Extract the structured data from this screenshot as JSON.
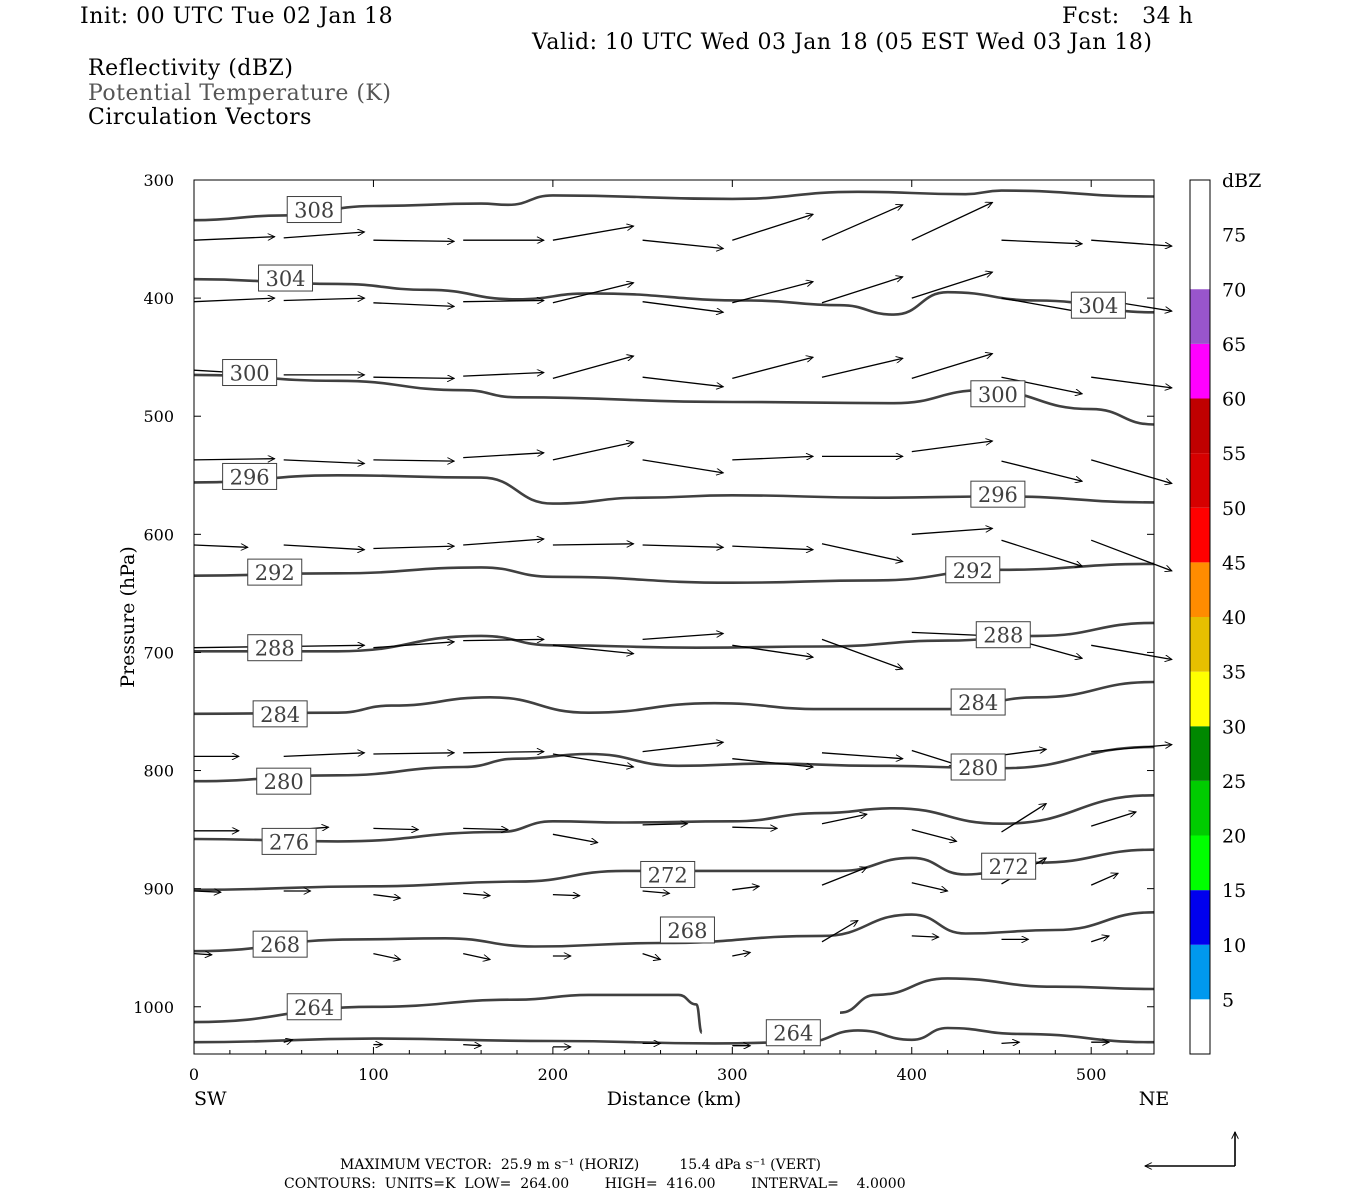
{
  "header": {
    "init": "Init: 00 UTC Tue 02 Jan 18",
    "fcst": "Fcst:   34 h",
    "valid": "Valid: 10 UTC Wed 03 Jan 18 (05 EST Wed 03 Jan 18)",
    "field1": "Reflectivity (dBZ)",
    "field2": "Potential Temperature (K)",
    "field3": "Circulation Vectors"
  },
  "footer": {
    "line1": "MAXIMUM VECTOR:  25.9 m s⁻¹ (HORIZ)         15.4 dPa s⁻¹ (VERT)",
    "line2": "CONTOURS:  UNITS=K  LOW=  264.00        HIGH=  416.00        INTERVAL=    4.0000"
  },
  "colorbar": {
    "title": "dBZ",
    "labels": [
      "5",
      "10",
      "15",
      "20",
      "25",
      "30",
      "35",
      "40",
      "45",
      "50",
      "55",
      "60",
      "65",
      "70",
      "75"
    ],
    "colors": [
      "#00e5e5",
      "#0099ee",
      "#0000ee",
      "#00ff00",
      "#00cc00",
      "#008800",
      "#ffff00",
      "#e6bf00",
      "#ff8c00",
      "#ff0000",
      "#d60000",
      "#c00000",
      "#ff00ff",
      "#9955cc"
    ]
  },
  "chart_data": {
    "type": "cross-section contour with vectors",
    "xlabel": "Distance (km)",
    "ylabel": "Pressure (hPa)",
    "x_ticks": [
      "0",
      "100",
      "200",
      "300",
      "400",
      "500"
    ],
    "y_ticks": [
      "300",
      "400",
      "500",
      "600",
      "700",
      "800",
      "900",
      "1000"
    ],
    "xlim": [
      0,
      535
    ],
    "ylim": [
      1040,
      300
    ],
    "x_end_labels": {
      "left": "SW",
      "right": "NE"
    },
    "contour_interval_K": 4,
    "isentropes": [
      {
        "theta": 308,
        "points": [
          [
            0,
            334
          ],
          [
            50,
            330
          ],
          [
            100,
            322
          ],
          [
            160,
            320
          ],
          [
            175,
            321
          ],
          [
            200,
            313
          ],
          [
            300,
            316
          ],
          [
            370,
            310
          ],
          [
            430,
            312
          ],
          [
            450,
            309
          ],
          [
            535,
            314
          ]
        ]
      },
      {
        "theta": 304,
        "points": [
          [
            0,
            384
          ],
          [
            80,
            388
          ],
          [
            130,
            393
          ],
          [
            180,
            401
          ],
          [
            220,
            396
          ],
          [
            310,
            402
          ],
          [
            360,
            406
          ],
          [
            390,
            414
          ],
          [
            420,
            395
          ],
          [
            470,
            402
          ],
          [
            535,
            412
          ]
        ]
      },
      {
        "theta": 300,
        "points": [
          [
            0,
            465
          ],
          [
            80,
            470
          ],
          [
            150,
            478
          ],
          [
            180,
            484
          ],
          [
            300,
            488
          ],
          [
            390,
            489
          ],
          [
            440,
            478
          ],
          [
            500,
            494
          ],
          [
            535,
            507
          ]
        ]
      },
      {
        "theta": 296,
        "points": [
          [
            0,
            556
          ],
          [
            80,
            550
          ],
          [
            160,
            552
          ],
          [
            200,
            574
          ],
          [
            250,
            569
          ],
          [
            300,
            567
          ],
          [
            380,
            569
          ],
          [
            450,
            568
          ],
          [
            535,
            573
          ]
        ]
      },
      {
        "theta": 292,
        "points": [
          [
            0,
            635
          ],
          [
            80,
            633
          ],
          [
            160,
            628
          ],
          [
            200,
            636
          ],
          [
            300,
            641
          ],
          [
            380,
            639
          ],
          [
            450,
            630
          ],
          [
            535,
            625
          ]
        ]
      },
      {
        "theta": 288,
        "points": [
          [
            0,
            699
          ],
          [
            80,
            699
          ],
          [
            160,
            686
          ],
          [
            200,
            694
          ],
          [
            280,
            696
          ],
          [
            350,
            695
          ],
          [
            420,
            690
          ],
          [
            470,
            686
          ],
          [
            535,
            675
          ]
        ]
      },
      {
        "theta": 284,
        "points": [
          [
            0,
            752
          ],
          [
            80,
            751
          ],
          [
            110,
            745
          ],
          [
            165,
            738
          ],
          [
            220,
            751
          ],
          [
            290,
            743
          ],
          [
            350,
            748
          ],
          [
            420,
            748
          ],
          [
            470,
            738
          ],
          [
            535,
            725
          ]
        ]
      },
      {
        "theta": 280,
        "points": [
          [
            0,
            809
          ],
          [
            80,
            804
          ],
          [
            150,
            797
          ],
          [
            180,
            790
          ],
          [
            220,
            786
          ],
          [
            270,
            796
          ],
          [
            320,
            794
          ],
          [
            380,
            796
          ],
          [
            450,
            798
          ],
          [
            535,
            780
          ]
        ]
      },
      {
        "theta": 276,
        "points": [
          [
            0,
            858
          ],
          [
            80,
            860
          ],
          [
            170,
            852
          ],
          [
            200,
            843
          ],
          [
            240,
            844
          ],
          [
            300,
            843
          ],
          [
            350,
            836
          ],
          [
            390,
            832
          ],
          [
            450,
            845
          ],
          [
            535,
            821
          ]
        ]
      },
      {
        "theta": 272,
        "points": [
          [
            0,
            901
          ],
          [
            100,
            898
          ],
          [
            180,
            894
          ],
          [
            240,
            885
          ],
          [
            320,
            885
          ],
          [
            360,
            885
          ],
          [
            400,
            874
          ],
          [
            430,
            888
          ],
          [
            470,
            878
          ],
          [
            535,
            867
          ]
        ]
      },
      {
        "theta": 268,
        "points": [
          [
            0,
            953
          ],
          [
            90,
            943
          ],
          [
            140,
            942
          ],
          [
            190,
            949
          ],
          [
            260,
            946
          ],
          [
            350,
            940
          ],
          [
            400,
            922
          ],
          [
            430,
            938
          ],
          [
            480,
            935
          ],
          [
            535,
            920
          ]
        ]
      },
      {
        "theta": 264,
        "points": [
          [
            0,
            1013
          ],
          [
            100,
            1000
          ],
          [
            180,
            994
          ],
          [
            220,
            990
          ],
          [
            270,
            990
          ],
          [
            280,
            998
          ],
          [
            283,
            1022
          ]
        ]
      },
      {
        "theta": 264,
        "points": [
          [
            360,
            1005
          ],
          [
            380,
            990
          ],
          [
            420,
            976
          ],
          [
            480,
            983
          ],
          [
            535,
            985
          ]
        ]
      },
      {
        "theta": 264,
        "points": [
          [
            0,
            1030
          ],
          [
            100,
            1027
          ],
          [
            200,
            1029
          ],
          [
            290,
            1031
          ],
          [
            340,
            1030
          ],
          [
            370,
            1020
          ],
          [
            400,
            1028
          ],
          [
            420,
            1018
          ],
          [
            460,
            1023
          ],
          [
            535,
            1030
          ]
        ]
      }
    ],
    "contour_labels": [
      {
        "text": "308",
        "x": 67,
        "p": 325
      },
      {
        "text": "304",
        "x": 51,
        "p": 383
      },
      {
        "text": "304",
        "x": 504,
        "p": 406
      },
      {
        "text": "300",
        "x": 31,
        "p": 463
      },
      {
        "text": "300",
        "x": 448,
        "p": 481
      },
      {
        "text": "296",
        "x": 31,
        "p": 551
      },
      {
        "text": "296",
        "x": 448,
        "p": 566
      },
      {
        "text": "292",
        "x": 45,
        "p": 632
      },
      {
        "text": "292",
        "x": 434,
        "p": 630
      },
      {
        "text": "288",
        "x": 45,
        "p": 696
      },
      {
        "text": "288",
        "x": 451,
        "p": 685
      },
      {
        "text": "284",
        "x": 48,
        "p": 752
      },
      {
        "text": "284",
        "x": 437,
        "p": 742
      },
      {
        "text": "280",
        "x": 50,
        "p": 809
      },
      {
        "text": "280",
        "x": 437,
        "p": 797
      },
      {
        "text": "276",
        "x": 53,
        "p": 860
      },
      {
        "text": "272",
        "x": 264,
        "p": 888
      },
      {
        "text": "272",
        "x": 454,
        "p": 881
      },
      {
        "text": "268",
        "x": 48,
        "p": 947
      },
      {
        "text": "268",
        "x": 275,
        "p": 935
      },
      {
        "text": "264",
        "x": 67,
        "p": 1000
      },
      {
        "text": "264",
        "x": 334,
        "p": 1022
      }
    ],
    "vectors": [
      [
        0,
        351,
        45,
        348
      ],
      [
        50,
        349,
        95,
        344
      ],
      [
        100,
        351,
        145,
        352
      ],
      [
        150,
        351,
        195,
        351
      ],
      [
        200,
        351,
        245,
        339
      ],
      [
        250,
        351,
        295,
        358
      ],
      [
        300,
        351,
        345,
        329
      ],
      [
        350,
        351,
        395,
        321
      ],
      [
        400,
        351,
        445,
        319
      ],
      [
        450,
        351,
        495,
        354
      ],
      [
        500,
        351,
        545,
        356
      ],
      [
        0,
        403,
        45,
        400
      ],
      [
        50,
        402,
        95,
        400
      ],
      [
        100,
        404,
        145,
        407
      ],
      [
        150,
        403,
        195,
        402
      ],
      [
        200,
        404,
        245,
        387
      ],
      [
        250,
        403,
        295,
        412
      ],
      [
        300,
        404,
        345,
        386
      ],
      [
        350,
        404,
        395,
        382
      ],
      [
        400,
        400,
        445,
        378
      ],
      [
        450,
        400,
        495,
        412
      ],
      [
        500,
        400,
        545,
        411
      ],
      [
        0,
        461,
        45,
        465
      ],
      [
        50,
        465,
        95,
        465
      ],
      [
        100,
        467,
        145,
        468
      ],
      [
        150,
        466,
        195,
        463
      ],
      [
        200,
        468,
        245,
        449
      ],
      [
        250,
        467,
        295,
        475
      ],
      [
        300,
        468,
        345,
        450
      ],
      [
        350,
        467,
        395,
        451
      ],
      [
        400,
        468,
        445,
        447
      ],
      [
        450,
        467,
        495,
        481
      ],
      [
        500,
        467,
        545,
        476
      ],
      [
        0,
        537,
        45,
        536
      ],
      [
        50,
        537,
        95,
        540
      ],
      [
        100,
        537,
        145,
        538
      ],
      [
        150,
        535,
        195,
        531
      ],
      [
        200,
        537,
        245,
        522
      ],
      [
        250,
        537,
        295,
        548
      ],
      [
        300,
        537,
        345,
        534
      ],
      [
        350,
        534,
        395,
        534
      ],
      [
        400,
        530,
        445,
        521
      ],
      [
        450,
        538,
        495,
        555
      ],
      [
        500,
        537,
        545,
        557
      ],
      [
        0,
        609,
        30,
        611
      ],
      [
        50,
        609,
        95,
        613
      ],
      [
        100,
        612,
        145,
        610
      ],
      [
        150,
        609,
        195,
        604
      ],
      [
        200,
        609,
        245,
        608
      ],
      [
        250,
        609,
        295,
        611
      ],
      [
        300,
        610,
        345,
        613
      ],
      [
        350,
        608,
        395,
        623
      ],
      [
        400,
        600,
        445,
        595
      ],
      [
        450,
        605,
        495,
        627
      ],
      [
        500,
        605,
        545,
        631
      ],
      [
        0,
        696,
        45,
        695
      ],
      [
        50,
        695,
        95,
        694
      ],
      [
        100,
        696,
        145,
        691
      ],
      [
        150,
        690,
        195,
        689
      ],
      [
        200,
        694,
        245,
        701
      ],
      [
        250,
        689,
        295,
        684
      ],
      [
        300,
        694,
        345,
        704
      ],
      [
        350,
        689,
        395,
        714
      ],
      [
        400,
        683,
        445,
        686
      ],
      [
        450,
        686,
        495,
        705
      ],
      [
        500,
        694,
        545,
        706
      ],
      [
        0,
        788,
        25,
        788
      ],
      [
        50,
        788,
        95,
        785
      ],
      [
        100,
        786,
        145,
        785
      ],
      [
        150,
        785,
        195,
        784
      ],
      [
        200,
        786,
        245,
        797
      ],
      [
        250,
        784,
        295,
        776
      ],
      [
        300,
        790,
        345,
        797
      ],
      [
        350,
        785,
        395,
        790
      ],
      [
        400,
        783,
        425,
        795
      ],
      [
        450,
        787,
        475,
        782
      ],
      [
        500,
        784,
        545,
        778
      ],
      [
        0,
        851,
        25,
        851
      ],
      [
        50,
        851,
        75,
        848
      ],
      [
        100,
        849,
        125,
        850
      ],
      [
        150,
        849,
        175,
        850
      ],
      [
        200,
        854,
        225,
        861
      ],
      [
        250,
        846,
        275,
        845
      ],
      [
        300,
        848,
        325,
        849
      ],
      [
        350,
        845,
        375,
        837
      ],
      [
        400,
        850,
        425,
        860
      ],
      [
        450,
        852,
        475,
        828
      ],
      [
        500,
        847,
        525,
        835
      ],
      [
        0,
        902,
        15,
        903
      ],
      [
        50,
        902,
        65,
        902
      ],
      [
        100,
        905,
        115,
        908
      ],
      [
        150,
        904,
        165,
        906
      ],
      [
        200,
        905,
        215,
        906
      ],
      [
        250,
        902,
        265,
        904
      ],
      [
        300,
        901,
        315,
        898
      ],
      [
        350,
        897,
        375,
        882
      ],
      [
        400,
        895,
        420,
        902
      ],
      [
        450,
        896,
        475,
        874
      ],
      [
        500,
        897,
        515,
        887
      ],
      [
        0,
        955,
        10,
        956
      ],
      [
        100,
        955,
        115,
        960
      ],
      [
        150,
        955,
        165,
        960
      ],
      [
        200,
        957,
        210,
        957
      ],
      [
        250,
        955,
        260,
        960
      ],
      [
        300,
        957,
        310,
        954
      ],
      [
        350,
        945,
        370,
        927
      ],
      [
        400,
        940,
        415,
        941
      ],
      [
        450,
        943,
        465,
        943
      ],
      [
        500,
        945,
        510,
        940
      ],
      [
        50,
        1030,
        55,
        1028
      ],
      [
        100,
        1032,
        105,
        1032
      ],
      [
        150,
        1032,
        160,
        1033
      ],
      [
        200,
        1034,
        210,
        1034
      ],
      [
        250,
        1031,
        260,
        1031
      ],
      [
        300,
        1033,
        310,
        1033
      ],
      [
        450,
        1031,
        460,
        1030
      ],
      [
        500,
        1030,
        510,
        1030
      ]
    ]
  }
}
